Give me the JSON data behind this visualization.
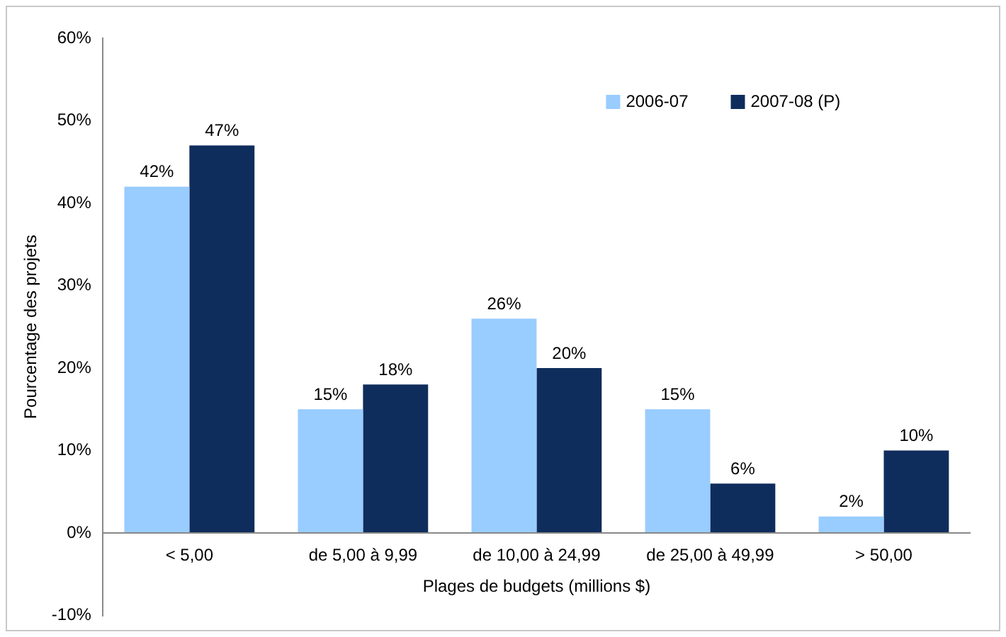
{
  "chart_data": {
    "type": "bar",
    "xlabel": "Plages de budgets (millions $)",
    "ylabel": "Pourcentage des projets",
    "categories": [
      "< 5,00",
      "de 5,00 à 9,99",
      "de 10,00 à 24,99",
      "de 25,00 à 49,99",
      "> 50,00"
    ],
    "series": [
      {
        "name": "2006-07",
        "color": "#99ccff",
        "values": [
          42,
          15,
          26,
          15,
          2
        ],
        "value_labels": [
          "42%",
          "15%",
          "26%",
          "15%",
          "2%"
        ]
      },
      {
        "name": "2007-08 (P)",
        "color": "#0f2d5c",
        "values": [
          47,
          18,
          20,
          6,
          10
        ],
        "value_labels": [
          "47%",
          "18%",
          "20%",
          "6%",
          "10%"
        ]
      }
    ],
    "ylim": [
      -10,
      60
    ],
    "yticks": [
      {
        "value": -10,
        "label": "-10%"
      },
      {
        "value": 0,
        "label": "0%"
      },
      {
        "value": 10,
        "label": "10%"
      },
      {
        "value": 20,
        "label": "20%"
      },
      {
        "value": 30,
        "label": "30%"
      },
      {
        "value": 40,
        "label": "40%"
      },
      {
        "value": 50,
        "label": "50%"
      },
      {
        "value": 60,
        "label": "60%"
      }
    ],
    "grid": false,
    "legend": "top right"
  }
}
